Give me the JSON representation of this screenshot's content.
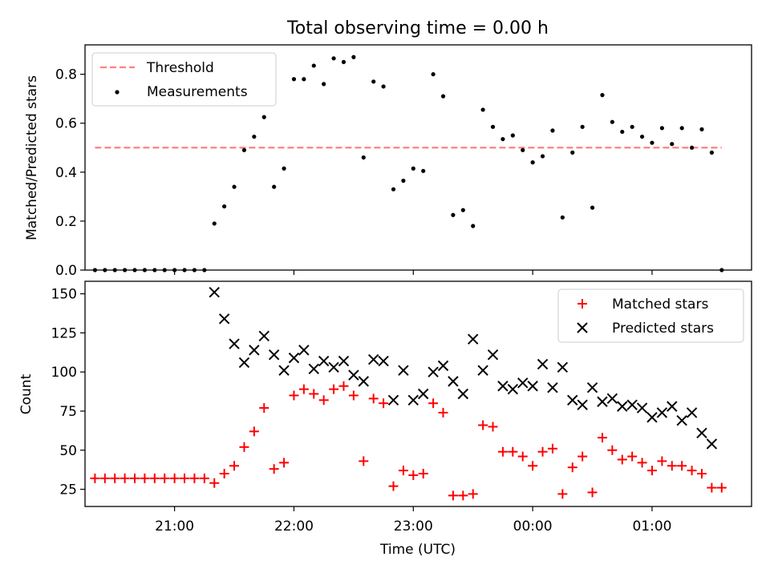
{
  "chart_data": [
    {
      "type": "scatter",
      "title": "Total observing time = 0.00 h",
      "xlabel": "",
      "ylabel": "Matched/Predicted stars",
      "xlim": [
        "20:15",
        "01:50"
      ],
      "ylim": [
        0,
        0.92
      ],
      "yticks": [
        0.0,
        0.2,
        0.4,
        0.6,
        0.8
      ],
      "ytick_labels": [
        "0.0",
        "0.2",
        "0.4",
        "0.6",
        "0.8"
      ],
      "xticks": [
        "21:00",
        "22:00",
        "23:00",
        "00:00",
        "01:00"
      ],
      "legend_position": "top-left",
      "colors": {
        "threshold": "#ff8080",
        "measurements": "#000000"
      },
      "threshold": {
        "name": "Threshold",
        "value": 0.5,
        "x_range": [
          "20:20",
          "01:35"
        ]
      },
      "series": [
        {
          "name": "Measurements",
          "marker": "dot",
          "x": [
            "20:20",
            "20:25",
            "20:30",
            "20:35",
            "20:40",
            "20:45",
            "20:50",
            "20:55",
            "21:00",
            "21:05",
            "21:10",
            "21:15",
            "21:20",
            "21:25",
            "21:30",
            "21:35",
            "21:40",
            "21:45",
            "21:50",
            "21:55",
            "22:00",
            "22:05",
            "22:10",
            "22:15",
            "22:20",
            "22:25",
            "22:30",
            "22:35",
            "22:40",
            "22:45",
            "22:50",
            "22:55",
            "23:00",
            "23:05",
            "23:10",
            "23:15",
            "23:20",
            "23:25",
            "23:30",
            "23:35",
            "23:40",
            "23:45",
            "23:50",
            "23:55",
            "00:00",
            "00:05",
            "00:10",
            "00:15",
            "00:20",
            "00:25",
            "00:30",
            "00:35",
            "00:40",
            "00:45",
            "00:50",
            "00:55",
            "01:00",
            "01:05",
            "01:10",
            "01:15",
            "01:20",
            "01:25",
            "01:30",
            "01:35"
          ],
          "y": [
            0,
            0,
            0,
            0,
            0,
            0,
            0,
            0,
            0,
            0,
            0,
            0,
            0.19,
            0.26,
            0.34,
            0.49,
            0.545,
            0.625,
            0.34,
            0.415,
            0.78,
            0.78,
            0.835,
            0.76,
            0.865,
            0.85,
            0.87,
            0.46,
            0.77,
            0.75,
            0.33,
            0.365,
            0.415,
            0.405,
            0.8,
            0.71,
            0.225,
            0.245,
            0.18,
            0.655,
            0.585,
            0.535,
            0.55,
            0.49,
            0.44,
            0.465,
            0.57,
            0.215,
            0.48,
            0.585,
            0.255,
            0.715,
            0.605,
            0.565,
            0.585,
            0.545,
            0.52,
            0.58,
            0.515,
            0.58,
            0.5,
            0.575,
            0.48,
            0.0
          ]
        }
      ]
    },
    {
      "type": "scatter",
      "title": "",
      "xlabel": "Time (UTC)",
      "ylabel": "Count",
      "xlim": [
        "20:15",
        "01:50"
      ],
      "ylim": [
        14,
        158
      ],
      "yticks": [
        25,
        50,
        75,
        100,
        125,
        150
      ],
      "ytick_labels": [
        "25",
        "50",
        "75",
        "100",
        "125",
        "150"
      ],
      "xticks": [
        "21:00",
        "22:00",
        "23:00",
        "00:00",
        "01:00"
      ],
      "xtick_labels": [
        "21:00",
        "22:00",
        "23:00",
        "00:00",
        "01:00"
      ],
      "legend_position": "top-right",
      "colors": {
        "matched": "#ff0000",
        "predicted": "#000000"
      },
      "series": [
        {
          "name": "Matched stars",
          "marker": "plus",
          "x": [
            "20:20",
            "20:25",
            "20:30",
            "20:35",
            "20:40",
            "20:45",
            "20:50",
            "20:55",
            "21:00",
            "21:05",
            "21:10",
            "21:15",
            "21:20",
            "21:25",
            "21:30",
            "21:35",
            "21:40",
            "21:45",
            "21:50",
            "21:55",
            "22:00",
            "22:05",
            "22:10",
            "22:15",
            "22:20",
            "22:25",
            "22:30",
            "22:35",
            "22:40",
            "22:45",
            "22:50",
            "22:55",
            "23:00",
            "23:05",
            "23:10",
            "23:15",
            "23:20",
            "23:25",
            "23:30",
            "23:35",
            "23:40",
            "23:45",
            "23:50",
            "23:55",
            "00:00",
            "00:05",
            "00:10",
            "00:15",
            "00:20",
            "00:25",
            "00:30",
            "00:35",
            "00:40",
            "00:45",
            "00:50",
            "00:55",
            "01:00",
            "01:05",
            "01:10",
            "01:15",
            "01:20",
            "01:25",
            "01:30",
            "01:35"
          ],
          "y": [
            32,
            32,
            32,
            32,
            32,
            32,
            32,
            32,
            32,
            32,
            32,
            32,
            29,
            35,
            40,
            52,
            62,
            77,
            38,
            42,
            85,
            89,
            86,
            82,
            89,
            91,
            85,
            43,
            83,
            80,
            27,
            37,
            34,
            35,
            80,
            74,
            21,
            21,
            22,
            66,
            65,
            49,
            49,
            46,
            40,
            49,
            51,
            22,
            39,
            46,
            23,
            58,
            50,
            44,
            46,
            42,
            37,
            43,
            40,
            40,
            37,
            35,
            26,
            26
          ]
        },
        {
          "name": "Predicted stars",
          "marker": "x",
          "x": [
            "21:20",
            "21:25",
            "21:30",
            "21:35",
            "21:40",
            "21:45",
            "21:50",
            "21:55",
            "22:00",
            "22:05",
            "22:10",
            "22:15",
            "22:20",
            "22:25",
            "22:30",
            "22:35",
            "22:40",
            "22:45",
            "22:50",
            "22:55",
            "23:00",
            "23:05",
            "23:10",
            "23:15",
            "23:20",
            "23:25",
            "23:30",
            "23:35",
            "23:40",
            "23:45",
            "23:50",
            "23:55",
            "00:00",
            "00:05",
            "00:10",
            "00:15",
            "00:20",
            "00:25",
            "00:30",
            "00:35",
            "00:40",
            "00:45",
            "00:50",
            "00:55",
            "01:00",
            "01:05",
            "01:10",
            "01:15",
            "01:20",
            "01:25",
            "01:30"
          ],
          "y": [
            151,
            134,
            118,
            106,
            114,
            123,
            111,
            101,
            109,
            114,
            102,
            107,
            103,
            107,
            98,
            94,
            108,
            107,
            82,
            101,
            82,
            86,
            100,
            104,
            94,
            86,
            121,
            101,
            111,
            91,
            89,
            93,
            91,
            105,
            90,
            103,
            82,
            79,
            90,
            81,
            83,
            78,
            79,
            77,
            71,
            74,
            78,
            69,
            74,
            61,
            54
          ]
        }
      ]
    }
  ]
}
